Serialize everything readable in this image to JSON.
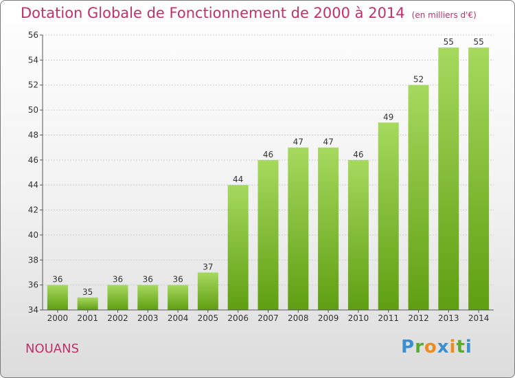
{
  "header": {
    "title": "Dotation Globale de Fonctionnement de 2000 à 2014",
    "subtitle": "(en milliers d'€)"
  },
  "footer": {
    "place": "NOUANS",
    "logo_text": "Proxiti"
  },
  "colors": {
    "title": "#c0306a",
    "bar_light": "#a6d95e",
    "bar_dark": "#5f9e12",
    "grid": "#cccccc"
  },
  "chart_data": {
    "type": "bar",
    "categories": [
      "2000",
      "2001",
      "2002",
      "2003",
      "2004",
      "2005",
      "2006",
      "2007",
      "2008",
      "2009",
      "2010",
      "2011",
      "2012",
      "2013",
      "2014"
    ],
    "values": [
      36,
      35,
      36,
      36,
      36,
      37,
      44,
      46,
      47,
      47,
      46,
      49,
      52,
      55,
      55
    ],
    "ylim": [
      34,
      56
    ],
    "yticks": [
      34,
      36,
      38,
      40,
      42,
      44,
      46,
      48,
      50,
      52,
      54,
      56
    ],
    "grid": true,
    "data_labels": true
  }
}
